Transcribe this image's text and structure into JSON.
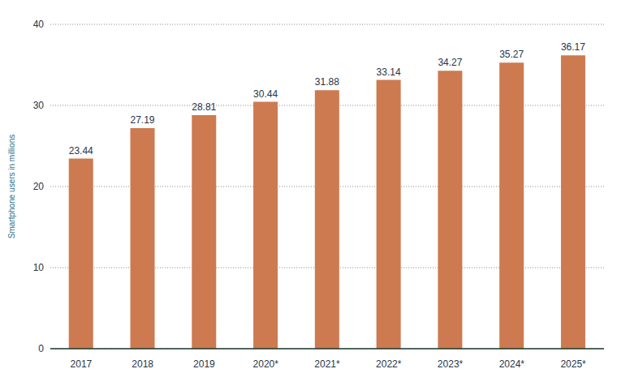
{
  "chart_data": {
    "type": "bar",
    "y_label": "Smartphone users in millions",
    "categories": [
      "2017",
      "2018",
      "2019",
      "2020*",
      "2021*",
      "2022*",
      "2023*",
      "2024*",
      "2025*"
    ],
    "values": [
      23.44,
      27.19,
      28.81,
      30.44,
      31.88,
      33.14,
      34.27,
      35.27,
      36.17
    ],
    "color": "#cd7a50",
    "ylim": [
      0,
      40
    ],
    "yticks": [
      0,
      10,
      20,
      30,
      40
    ],
    "grid": true,
    "data_labels": true
  }
}
